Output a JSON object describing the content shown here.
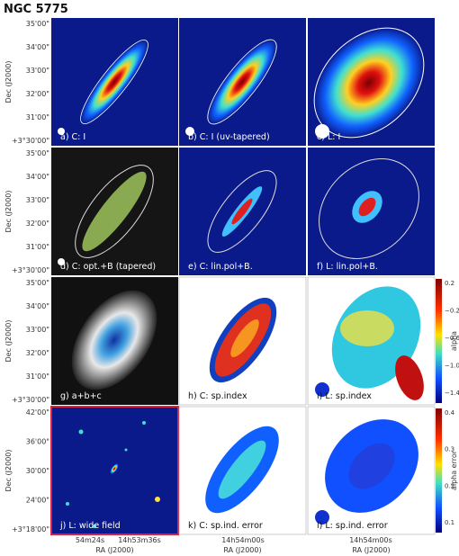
{
  "title": "NGC 5775",
  "panels": [
    {
      "label": "a) C: I"
    },
    {
      "label": "b) C: I (uv-tapered)"
    },
    {
      "label": "c) L: I"
    },
    {
      "label": "d) C: opt.+B (tapered)"
    },
    {
      "label": "e) C: lin.pol+B."
    },
    {
      "label": "f) L: lin.pol+B."
    },
    {
      "label": "g) a+b+c"
    },
    {
      "label": "h) C: sp.index"
    },
    {
      "label": "i) L: sp.index"
    },
    {
      "label": "j) L: wide field"
    },
    {
      "label": "k) C: sp.ind. error"
    },
    {
      "label": "l) L: sp.ind. error"
    }
  ],
  "rows": [
    {
      "y_label": "Dec (J2000)",
      "dec_ticks": [
        "35'00\"",
        "34'00\"",
        "33'00\"",
        "32'00\"",
        "31'00\"",
        "+3°30'00\""
      ]
    },
    {
      "y_label": "Dec (J2000)",
      "dec_ticks": [
        "35'00\"",
        "34'00\"",
        "33'00\"",
        "32'00\"",
        "31'00\"",
        "+3°30'00\""
      ]
    },
    {
      "y_label": "Dec (J2000)",
      "dec_ticks": [
        "35'00\"",
        "34'00\"",
        "33'00\"",
        "32'00\"",
        "31'00\"",
        "+3°30'00\""
      ]
    },
    {
      "y_label": "Dec (J2000)",
      "dec_ticks": [
        "42'00\"",
        "36'00\"",
        "30'00\"",
        "24'00\"",
        "+3°18'00\""
      ]
    }
  ],
  "columns": [
    {
      "x_label": "RA (J2000)",
      "ra_ticks": [
        "54m24s",
        "14h53m36s"
      ]
    },
    {
      "x_label": "RA (J2000)",
      "ra_ticks": [
        "14h54m00s"
      ]
    },
    {
      "x_label": "RA (J2000)",
      "ra_ticks": [
        "14h54m00s"
      ]
    }
  ],
  "colorbars": [
    {
      "label": "alpha",
      "ticks": [
        "0.2",
        "−0.2",
        "−0.6",
        "−1.0",
        "−1.4"
      ]
    },
    {
      "label": "alpha error",
      "ticks": [
        "0.4",
        "0.3",
        "0.2",
        "0.1"
      ]
    }
  ]
}
